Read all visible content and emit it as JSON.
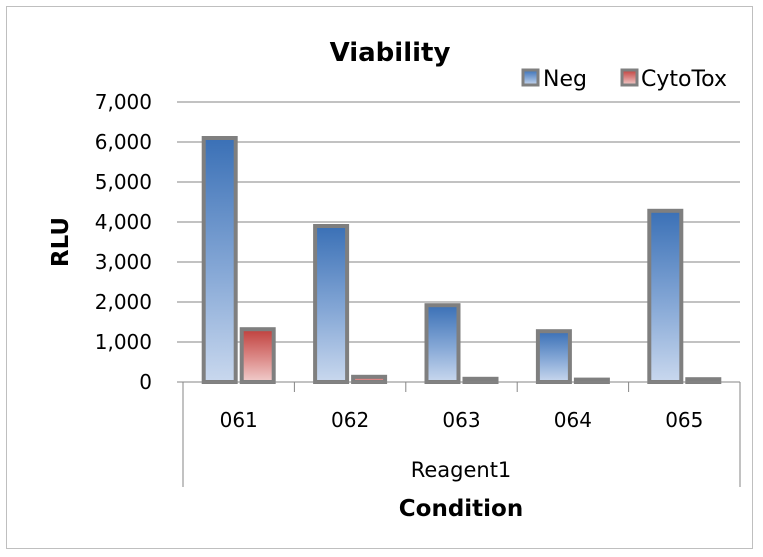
{
  "chart_data": {
    "type": "bar",
    "title": "Viability",
    "ylabel": "RLU",
    "xlabel": "Condition",
    "group_label": "Reagent1",
    "categories": [
      "061",
      "062",
      "063",
      "064",
      "065"
    ],
    "series": [
      {
        "name": "Neg",
        "color": "#4f81bd",
        "values": [
          6100,
          3900,
          1920,
          1270,
          4280
        ]
      },
      {
        "name": "CytoTox",
        "color": "#c0504d",
        "values": [
          1320,
          130,
          80,
          60,
          70
        ]
      }
    ],
    "ylim": [
      0,
      7000
    ],
    "yticks": [
      "0",
      "1,000",
      "2,000",
      "3,000",
      "4,000",
      "5,000",
      "6,000",
      "7,000"
    ],
    "grid": true,
    "legend": "top-right",
    "bar_style": "3d-gradient"
  }
}
